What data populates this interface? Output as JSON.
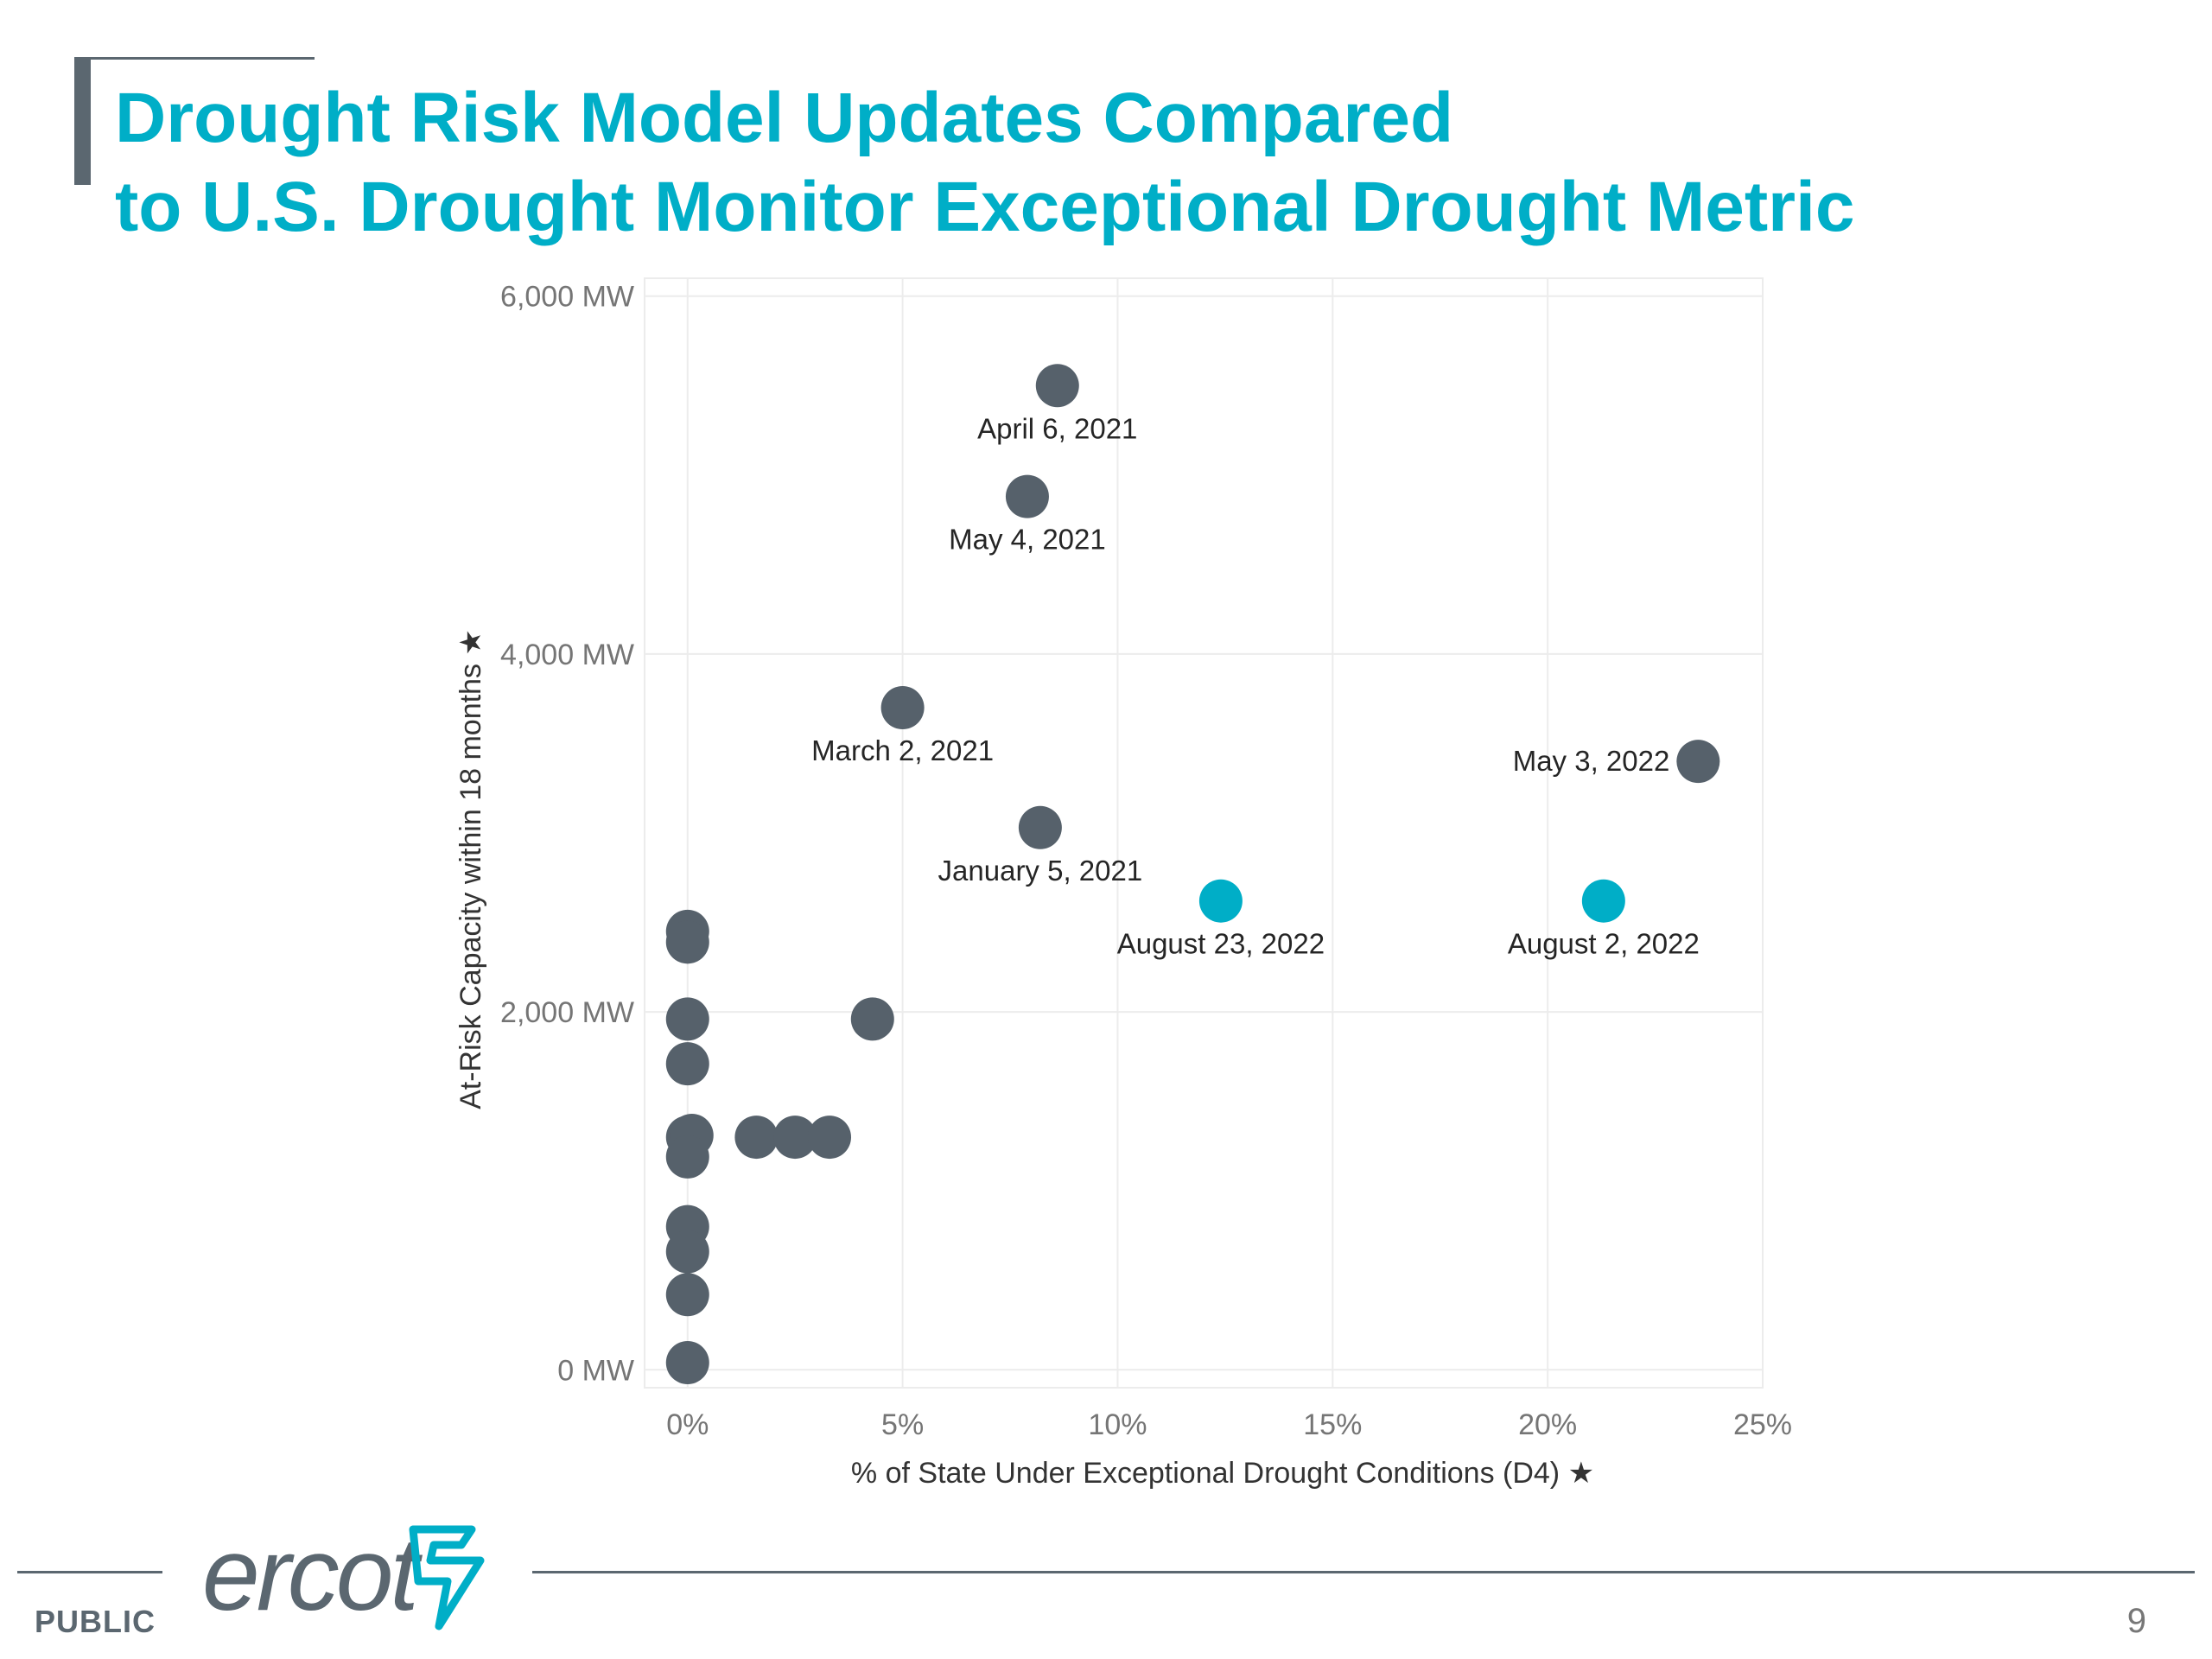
{
  "slide": {
    "title_line_1": "Drought Risk Model Updates Compared",
    "title_line_2": "to U.S. Drought Monitor Exceptional Drought Metric",
    "classification": "PUBLIC",
    "page_number": "9",
    "logo_text": "ercot"
  },
  "colors": {
    "title": "#00aec7",
    "historical_point": "#56616b",
    "recent_point": "#00aec7",
    "grid": "#ececec",
    "footer_rule": "#5b6770"
  },
  "chart_data": {
    "type": "scatter",
    "title": "",
    "xlabel": "% of State Under Exceptional Drought Conditions (D4) ★",
    "ylabel": "At-Risk Capacity within 18 months ★",
    "xlim": [
      -1,
      25
    ],
    "ylim": [
      -100,
      6100
    ],
    "x_ticks": [
      0,
      5,
      10,
      15,
      20,
      25
    ],
    "x_tick_labels": [
      "0%",
      "5%",
      "10%",
      "15%",
      "20%",
      "25%"
    ],
    "y_ticks": [
      0,
      2000,
      4000,
      6000
    ],
    "y_tick_labels": [
      "0 MW",
      "2,000 MW",
      "4,000 MW",
      "6,000 MW"
    ],
    "grid": true,
    "legend": "none",
    "points": [
      {
        "x": 8.6,
        "y": 5500,
        "label": "April 6, 2021",
        "label_pos": "below",
        "group": "historical"
      },
      {
        "x": 7.9,
        "y": 4880,
        "label": "May 4, 2021",
        "label_pos": "below",
        "group": "historical"
      },
      {
        "x": 5.0,
        "y": 3700,
        "label": "March 2, 2021",
        "label_pos": "below",
        "group": "historical"
      },
      {
        "x": 8.2,
        "y": 3030,
        "label": "January 5, 2021",
        "label_pos": "below",
        "group": "historical"
      },
      {
        "x": 23.5,
        "y": 3400,
        "label": "May 3, 2022",
        "label_pos": "left",
        "group": "historical"
      },
      {
        "x": 12.4,
        "y": 2620,
        "label": "August 23, 2022",
        "label_pos": "below",
        "group": "recent"
      },
      {
        "x": 21.3,
        "y": 2620,
        "label": "August 2, 2022",
        "label_pos": "below",
        "group": "recent"
      },
      {
        "x": 4.3,
        "y": 1960,
        "label": "",
        "group": "historical"
      },
      {
        "x": 0,
        "y": 2450,
        "label": "",
        "group": "historical"
      },
      {
        "x": 0,
        "y": 2390,
        "label": "",
        "group": "historical"
      },
      {
        "x": 0,
        "y": 1960,
        "label": "",
        "group": "historical"
      },
      {
        "x": 0,
        "y": 1710,
        "label": "",
        "group": "historical"
      },
      {
        "x": 0,
        "y": 1300,
        "label": "",
        "group": "historical"
      },
      {
        "x": 0.1,
        "y": 1310,
        "label": "",
        "group": "historical"
      },
      {
        "x": 0,
        "y": 1190,
        "label": "",
        "group": "historical"
      },
      {
        "x": 1.6,
        "y": 1300,
        "label": "",
        "group": "historical"
      },
      {
        "x": 2.5,
        "y": 1300,
        "label": "",
        "group": "historical"
      },
      {
        "x": 3.3,
        "y": 1300,
        "label": "",
        "group": "historical"
      },
      {
        "x": 0,
        "y": 800,
        "label": "",
        "group": "historical"
      },
      {
        "x": 0,
        "y": 660,
        "label": "",
        "group": "historical"
      },
      {
        "x": 0,
        "y": 420,
        "label": "",
        "group": "historical"
      },
      {
        "x": 0,
        "y": 40,
        "label": "",
        "group": "historical"
      }
    ]
  }
}
